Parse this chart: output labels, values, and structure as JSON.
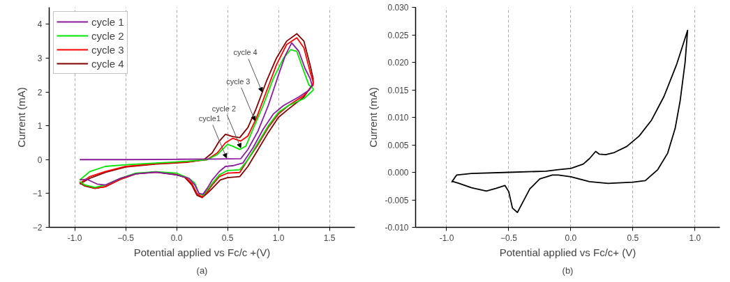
{
  "chart_data": [
    {
      "type": "line",
      "xlabel": "Potential applied vs Fc/c +(V)",
      "ylabel": "Current (mA)",
      "xlim": [
        -1.25,
        1.75
      ],
      "ylim": [
        -2,
        4.5
      ],
      "xticks": [
        {
          "value": -1,
          "label": "-1.0"
        },
        -0.5,
        {
          "value": 0,
          "label": "0.0"
        },
        0.5,
        {
          "value": 1,
          "label": "1.0"
        },
        1.5
      ],
      "yticks": [
        -2,
        -1,
        0,
        1,
        2,
        3,
        4
      ],
      "grid": "x",
      "legend": "top left",
      "marker": "none",
      "line_style": "solid",
      "series": [
        {
          "name": "cycle 1",
          "color": "#8b1a9c",
          "x": [
            -0.95,
            -0.5,
            0.0,
            0.4,
            0.63,
            0.7,
            0.8,
            0.9,
            1.0,
            1.07,
            1.13,
            1.2,
            1.26,
            1.31,
            1.33,
            1.3,
            1.2,
            1.05,
            0.95,
            0.85,
            0.75,
            0.65,
            0.55,
            0.48,
            0.42,
            0.35,
            0.3,
            0.26,
            0.22,
            0.18,
            0.12,
            0.0,
            -0.2,
            -0.4,
            -0.55,
            -0.7,
            -0.78,
            -0.88,
            -0.95
          ],
          "values": [
            0.0,
            0.0,
            0.01,
            0.02,
            0.03,
            0.3,
            0.85,
            1.6,
            2.5,
            3.1,
            3.45,
            3.2,
            2.7,
            2.4,
            2.2,
            2.05,
            1.85,
            1.6,
            1.35,
            0.9,
            0.35,
            -0.1,
            -0.18,
            -0.2,
            -0.35,
            -0.6,
            -0.85,
            -1.02,
            -1.0,
            -0.75,
            -0.55,
            -0.45,
            -0.37,
            -0.42,
            -0.55,
            -0.75,
            -0.72,
            -0.58,
            -0.6
          ]
        },
        {
          "name": "cycle 2",
          "color": "#00e600",
          "x": [
            -0.95,
            -0.85,
            -0.7,
            -0.5,
            -0.2,
            0.1,
            0.3,
            0.4,
            0.5,
            0.55,
            0.62,
            0.68,
            0.75,
            0.85,
            0.95,
            1.05,
            1.12,
            1.18,
            1.25,
            1.3,
            1.34,
            1.34,
            1.25,
            1.1,
            1.0,
            0.9,
            0.8,
            0.7,
            0.62,
            0.5,
            0.42,
            0.35,
            0.3,
            0.26,
            0.22,
            0.18,
            0.12,
            0.0,
            -0.2,
            -0.4,
            -0.55,
            -0.7,
            -0.8,
            -0.9,
            -0.95
          ],
          "values": [
            -0.6,
            -0.35,
            -0.2,
            -0.15,
            -0.1,
            -0.05,
            0.0,
            0.15,
            0.45,
            0.4,
            0.3,
            0.4,
            0.9,
            1.6,
            2.4,
            3.0,
            3.25,
            3.2,
            2.6,
            2.2,
            2.1,
            2.05,
            1.8,
            1.6,
            1.4,
            1.0,
            0.5,
            0.0,
            -0.3,
            -0.32,
            -0.45,
            -0.7,
            -0.9,
            -1.05,
            -1.0,
            -0.7,
            -0.55,
            -0.4,
            -0.36,
            -0.4,
            -0.55,
            -0.75,
            -0.82,
            -0.75,
            -0.65
          ]
        },
        {
          "name": "cycle 3",
          "color": "#ff0000",
          "x": [
            -0.95,
            -0.85,
            -0.7,
            -0.5,
            -0.2,
            0.1,
            0.3,
            0.4,
            0.48,
            0.55,
            0.63,
            0.7,
            0.78,
            0.88,
            0.98,
            1.08,
            1.18,
            1.25,
            1.31,
            1.34,
            1.34,
            1.25,
            1.1,
            1.0,
            0.9,
            0.8,
            0.7,
            0.62,
            0.5,
            0.42,
            0.35,
            0.3,
            0.25,
            0.2,
            0.15,
            0.08,
            0.0,
            -0.2,
            -0.4,
            -0.55,
            -0.7,
            -0.8,
            -0.9,
            -0.95
          ],
          "values": [
            -0.7,
            -0.5,
            -0.35,
            -0.2,
            -0.12,
            -0.07,
            0.0,
            0.2,
            0.5,
            0.63,
            0.55,
            0.7,
            1.2,
            2.0,
            2.8,
            3.4,
            3.6,
            3.3,
            2.6,
            2.3,
            2.2,
            1.9,
            1.6,
            1.35,
            0.95,
            0.45,
            0.0,
            -0.38,
            -0.4,
            -0.5,
            -0.75,
            -0.95,
            -1.1,
            -1.0,
            -0.7,
            -0.5,
            -0.44,
            -0.37,
            -0.42,
            -0.58,
            -0.8,
            -0.84,
            -0.76,
            -0.67
          ]
        },
        {
          "name": "cycle 4",
          "color": "#800000",
          "x": [
            -0.95,
            -0.85,
            -0.7,
            -0.5,
            -0.2,
            0.1,
            0.27,
            0.35,
            0.42,
            0.48,
            0.55,
            0.62,
            0.7,
            0.78,
            0.88,
            0.98,
            1.08,
            1.18,
            1.25,
            1.31,
            1.34,
            1.34,
            1.25,
            1.1,
            1.0,
            0.9,
            0.8,
            0.7,
            0.62,
            0.5,
            0.43,
            0.35,
            0.3,
            0.25,
            0.2,
            0.15,
            0.08,
            0.0,
            -0.2,
            -0.4,
            -0.55,
            -0.7,
            -0.8,
            -0.9,
            -0.95
          ],
          "values": [
            -0.72,
            -0.55,
            -0.38,
            -0.22,
            -0.13,
            -0.08,
            0.0,
            0.2,
            0.55,
            0.75,
            0.68,
            0.65,
            0.95,
            1.5,
            2.3,
            3.0,
            3.5,
            3.72,
            3.5,
            2.8,
            2.4,
            2.25,
            1.85,
            1.5,
            1.25,
            0.8,
            0.3,
            -0.2,
            -0.5,
            -0.53,
            -0.6,
            -0.85,
            -1.0,
            -1.12,
            -1.05,
            -0.75,
            -0.52,
            -0.45,
            -0.36,
            -0.42,
            -0.58,
            -0.8,
            -0.85,
            -0.78,
            -0.69
          ]
        }
      ],
      "annotations": [
        {
          "text": "cycle1",
          "x": 0.49,
          "y": 0.05
        },
        {
          "text": "cycle 2",
          "x": 0.63,
          "y": 0.35
        },
        {
          "text": "cycle 3",
          "x": 0.77,
          "y": 1.15
        },
        {
          "text": "cycle 4",
          "x": 0.84,
          "y": 2.0
        },
        "(a)"
      ]
    },
    {
      "type": "line",
      "xlabel": "Potential applied vs Fc/c+ (V)",
      "ylabel": "Current (mA)",
      "xlim": [
        -1.25,
        1.2
      ],
      "ylim": [
        -0.01,
        0.03
      ],
      "xticks": [
        {
          "value": -1,
          "label": "-1.0"
        },
        -0.5,
        {
          "value": 0,
          "label": "0.0"
        },
        0.5,
        {
          "value": 1,
          "label": "1.0"
        }
      ],
      "yticks": [
        {
          "value": -0.01,
          "label": "-0.010"
        },
        {
          "value": -0.005,
          "label": "-0.005"
        },
        {
          "value": 0,
          "label": "0.000"
        },
        {
          "value": 0.005,
          "label": "0.005"
        },
        {
          "value": 0.01,
          "label": "0.010"
        },
        {
          "value": 0.015,
          "label": "0.015"
        },
        {
          "value": 0.02,
          "label": "0.020"
        },
        {
          "value": 0.025,
          "label": "0.025"
        },
        {
          "value": 0.03,
          "label": "0.030"
        }
      ],
      "grid": "x",
      "marker": "none",
      "line_style": "solid",
      "series": [
        {
          "color": "#000000",
          "x": [
            -0.96,
            -0.92,
            -0.8,
            -0.5,
            -0.2,
            -0.1,
            0.0,
            0.1,
            0.15,
            0.2,
            0.23,
            0.28,
            0.35,
            0.45,
            0.55,
            0.65,
            0.75,
            0.85,
            0.94,
            0.92,
            0.88,
            0.84,
            0.78,
            0.7,
            0.6,
            0.5,
            0.3,
            0.15,
            0.0,
            -0.1,
            -0.15,
            -0.25,
            -0.33,
            -0.4,
            -0.43,
            -0.47,
            -0.5,
            -0.53,
            -0.6,
            -0.68,
            -0.8,
            -0.9,
            -0.96
          ],
          "values": [
            -0.0018,
            -0.0005,
            -0.0002,
            0.0,
            0.0002,
            0.0005,
            0.0007,
            0.0015,
            0.0025,
            0.0038,
            0.0033,
            0.0032,
            0.0036,
            0.0047,
            0.0066,
            0.0095,
            0.0138,
            0.0195,
            0.0258,
            0.02,
            0.013,
            0.008,
            0.0035,
            0.0005,
            -0.0015,
            -0.0018,
            -0.002,
            -0.0017,
            -0.0008,
            -0.0005,
            -0.0005,
            -0.0012,
            -0.003,
            -0.006,
            -0.0073,
            -0.0065,
            -0.0035,
            -0.0024,
            -0.0029,
            -0.0034,
            -0.0028,
            -0.002,
            -0.0016
          ]
        }
      ],
      "annotations": [
        "(b)"
      ]
    }
  ]
}
